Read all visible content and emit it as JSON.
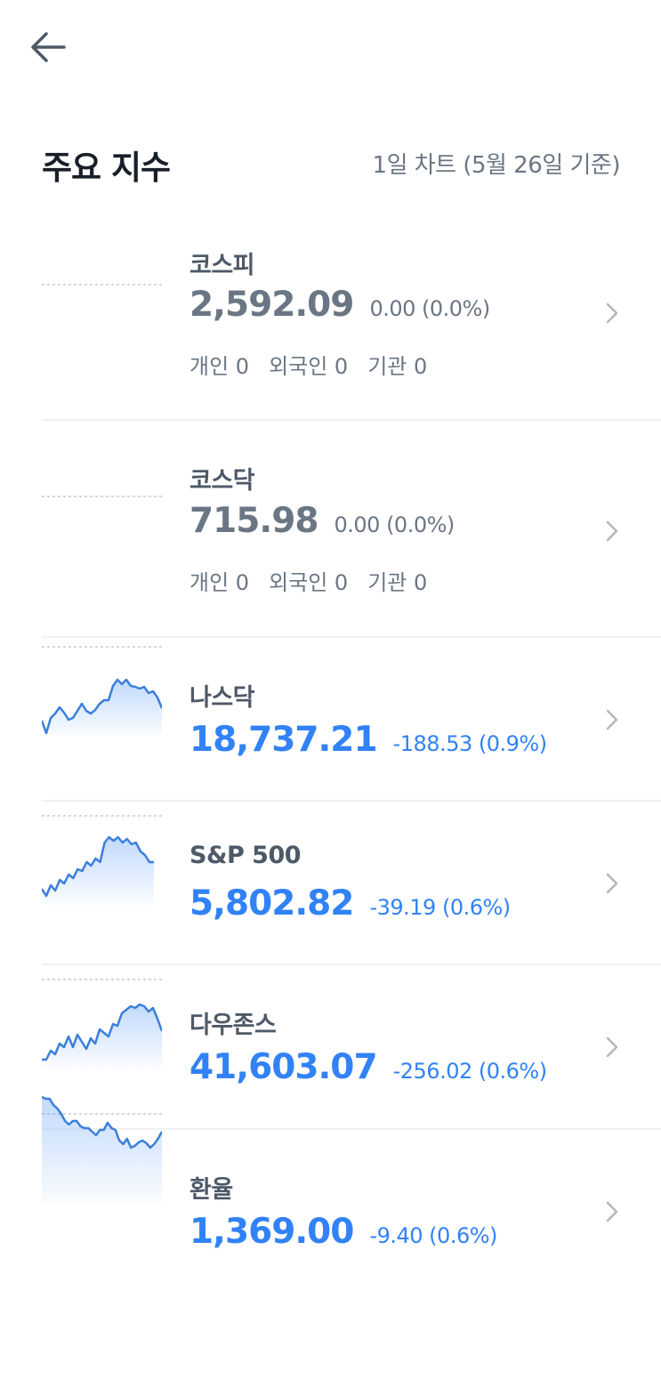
{
  "header": {
    "back_icon": "arrow-left-icon",
    "title": "주요 지수",
    "subtitle": "1일 차트 (5월 26일 기준)"
  },
  "colors": {
    "up_down_blue": "#3182f6",
    "neutral_gray": "#6b7684",
    "title": "#191f28"
  },
  "indices": [
    {
      "name": "코스피",
      "price": "2,592.09",
      "change": "0.00 (0.0%)",
      "tone": "gray",
      "investors": [
        "개인 0",
        "외국인 0",
        "기관 0"
      ],
      "sparkline": {
        "baseline": 100,
        "values": []
      }
    },
    {
      "name": "코스닥",
      "price": "715.98",
      "change": "0.00 (0.0%)",
      "tone": "gray",
      "investors": [
        "개인 0",
        "외국인 0",
        "기관 0"
      ],
      "sparkline": {
        "baseline": 100,
        "values": []
      }
    },
    {
      "name": "나스닥",
      "price": "18,737.21",
      "change": "-188.53 (0.9%)",
      "tone": "blue",
      "sparkline": {
        "baseline": 100,
        "values": [
          17,
          3,
          20,
          25,
          32,
          26,
          18,
          20,
          28,
          36,
          28,
          25,
          29,
          36,
          40,
          40,
          56,
          63,
          58,
          63,
          56,
          55,
          53,
          55,
          48,
          50,
          43,
          31
        ]
      }
    },
    {
      "name": "S&P 500",
      "price": "5,802.82",
      "change": "-39.19 (0.6%)",
      "tone": "blue",
      "sparkline": {
        "baseline": 100,
        "values": [
          18,
          10,
          22,
          16,
          28,
          24,
          34,
          30,
          40,
          38,
          48,
          44,
          52,
          48,
          70,
          76,
          72,
          76,
          70,
          74,
          68,
          70,
          60,
          56,
          48,
          48
        ]
      }
    },
    {
      "name": "다우존스",
      "price": "41,603.07",
      "change": "-256.02 (0.6%)",
      "tone": "blue",
      "sparkline": {
        "baseline": 100,
        "values": [
          10,
          10,
          20,
          16,
          28,
          24,
          36,
          24,
          38,
          30,
          22,
          34,
          28,
          44,
          40,
          36,
          50,
          48,
          62,
          66,
          70,
          68,
          72,
          70,
          64,
          68,
          56,
          42
        ]
      }
    },
    {
      "name": "환율",
      "price": "1,369.00",
      "change": "-9.40 (0.6%)",
      "tone": "blue",
      "sparkline": {
        "baseline": 100,
        "values": [
          119,
          117,
          117,
          110,
          106,
          100,
          92,
          88,
          92,
          92,
          86,
          84,
          84,
          80,
          76,
          82,
          82,
          90,
          84,
          82,
          70,
          66,
          72,
          62,
          64,
          68,
          70,
          67,
          62,
          66,
          72,
          80
        ]
      }
    }
  ]
}
